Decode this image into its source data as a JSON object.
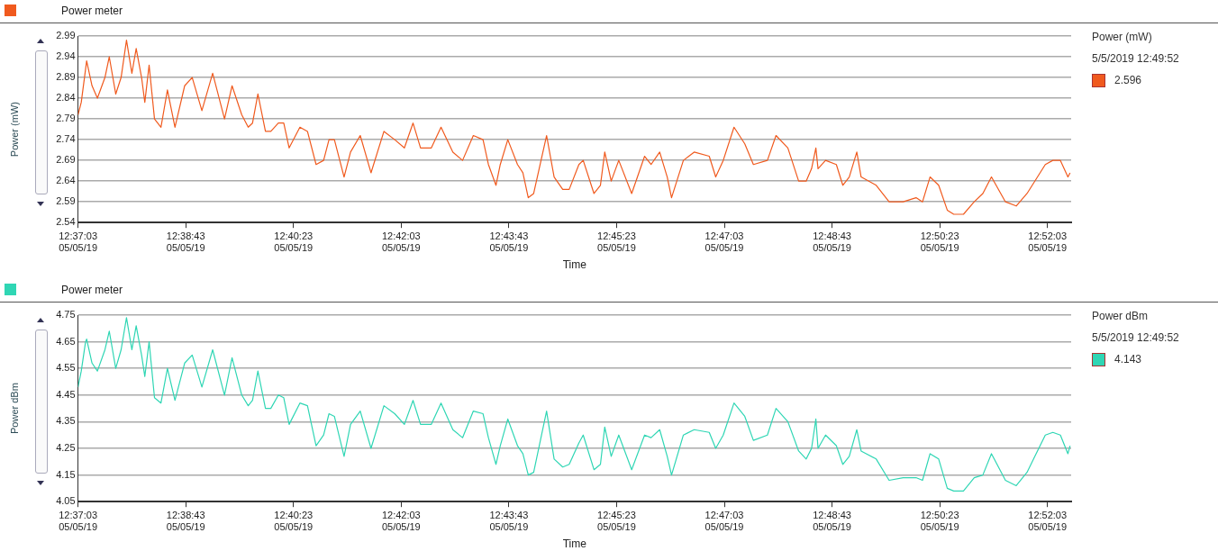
{
  "chart_data": [
    {
      "type": "line",
      "title": "Power meter",
      "xlabel": "Time",
      "ylabel": "Power (mW)",
      "legend_title": "Power (mW)",
      "legend": "top right",
      "grid": "y",
      "marker": "none",
      "line_style": "solid",
      "annotations": [
        "5/5/2019 12:49:52"
      ],
      "x": [
        "2019-05-05T12:37:03",
        "2019-05-05T12:37:06",
        "2019-05-05T12:37:10",
        "2019-05-05T12:37:11",
        "2019-05-05T12:37:16",
        "2019-05-05T12:37:21",
        "2019-05-05T12:37:28",
        "2019-05-05T12:37:32",
        "2019-05-05T12:37:38",
        "2019-05-05T12:37:43",
        "2019-05-05T12:37:48",
        "2019-05-05T12:37:53",
        "2019-05-05T12:37:57",
        "2019-05-05T12:38:02",
        "2019-05-05T12:38:05",
        "2019-05-05T12:38:09",
        "2019-05-05T12:38:14",
        "2019-05-05T12:38:20",
        "2019-05-05T12:38:26",
        "2019-05-05T12:38:33",
        "2019-05-05T12:38:42",
        "2019-05-05T12:38:49",
        "2019-05-05T12:38:58",
        "2019-05-05T12:39:08",
        "2019-05-05T12:39:19",
        "2019-05-05T12:39:26",
        "2019-05-05T12:39:35",
        "2019-05-05T12:39:41",
        "2019-05-05T12:39:45",
        "2019-05-05T12:39:50",
        "2019-05-05T12:39:57",
        "2019-05-05T12:40:02",
        "2019-05-05T12:40:09",
        "2019-05-05T12:40:14",
        "2019-05-05T12:40:19",
        "2019-05-05T12:40:29",
        "2019-05-05T12:40:36",
        "2019-05-05T12:40:44",
        "2019-05-05T12:40:51",
        "2019-05-05T12:40:56",
        "2019-05-05T12:41:01",
        "2019-05-05T12:41:10",
        "2019-05-05T12:41:16",
        "2019-05-05T12:41:25",
        "2019-05-05T12:41:35",
        "2019-05-05T12:41:47",
        "2019-05-05T12:41:57",
        "2019-05-05T12:42:06",
        "2019-05-05T12:42:14",
        "2019-05-05T12:42:21",
        "2019-05-05T12:42:31",
        "2019-05-05T12:42:40",
        "2019-05-05T12:42:51",
        "2019-05-05T12:43:00",
        "2019-05-05T12:43:10",
        "2019-05-05T12:43:19",
        "2019-05-05T12:43:24",
        "2019-05-05T12:43:31",
        "2019-05-05T12:43:35",
        "2019-05-05T12:43:42",
        "2019-05-05T12:43:51",
        "2019-05-05T12:43:56",
        "2019-05-05T12:44:01",
        "2019-05-05T12:44:06",
        "2019-05-05T12:44:18",
        "2019-05-05T12:44:25",
        "2019-05-05T12:44:33",
        "2019-05-05T12:44:39",
        "2019-05-05T12:44:48",
        "2019-05-05T12:44:52",
        "2019-05-05T12:45:02",
        "2019-05-05T12:45:08",
        "2019-05-05T12:45:12",
        "2019-05-05T12:45:18",
        "2019-05-05T12:45:25",
        "2019-05-05T12:45:37",
        "2019-05-05T12:45:49",
        "2019-05-05T12:45:55",
        "2019-05-05T12:46:03",
        "2019-05-05T12:46:10",
        "2019-05-05T12:46:14",
        "2019-05-05T12:46:25",
        "2019-05-05T12:46:35",
        "2019-05-05T12:46:49",
        "2019-05-05T12:46:55",
        "2019-05-05T12:47:02",
        "2019-05-05T12:47:12",
        "2019-05-05T12:47:22",
        "2019-05-05T12:47:30",
        "2019-05-05T12:47:43",
        "2019-05-05T12:47:51",
        "2019-05-05T12:48:02",
        "2019-05-05T12:48:12",
        "2019-05-05T12:48:19",
        "2019-05-05T12:48:24",
        "2019-05-05T12:48:28",
        "2019-05-05T12:48:30",
        "2019-05-05T12:48:37",
        "2019-05-05T12:48:47",
        "2019-05-05T12:48:53",
        "2019-05-05T12:48:59",
        "2019-05-05T12:49:06",
        "2019-05-05T12:49:10",
        "2019-05-05T12:49:24",
        "2019-05-05T12:49:36",
        "2019-05-05T12:49:49",
        "2019-05-05T12:50:01",
        "2019-05-05T12:50:07",
        "2019-05-05T12:50:14",
        "2019-05-05T12:50:22",
        "2019-05-05T12:50:30",
        "2019-05-05T12:50:36",
        "2019-05-05T12:50:45",
        "2019-05-05T12:50:55",
        "2019-05-05T12:51:03",
        "2019-05-05T12:51:11",
        "2019-05-05T12:51:24",
        "2019-05-05T12:51:34",
        "2019-05-05T12:51:44",
        "2019-05-05T12:52:01",
        "2019-05-05T12:52:08",
        "2019-05-05T12:52:15",
        "2019-05-05T12:52:22",
        "2019-05-05T12:52:24"
      ],
      "xlim": [
        "2019-05-05T12:37:03",
        "2019-05-05T12:52:25"
      ],
      "xticks": [
        {
          "value": "2019-05-05T12:37:03",
          "label": "12:37:03 05/05/19"
        },
        {
          "value": "2019-05-05T12:38:43",
          "label": "12:38:43 05/05/19"
        },
        {
          "value": "2019-05-05T12:40:23",
          "label": "12:40:23 05/05/19"
        },
        {
          "value": "2019-05-05T12:42:03",
          "label": "12:42:03 05/05/19"
        },
        {
          "value": "2019-05-05T12:43:43",
          "label": "12:43:43 05/05/19"
        },
        {
          "value": "2019-05-05T12:45:23",
          "label": "12:45:23 05/05/19"
        },
        {
          "value": "2019-05-05T12:47:03",
          "label": "12:47:03 05/05/19"
        },
        {
          "value": "2019-05-05T12:48:43",
          "label": "12:48:43 05/05/19"
        },
        {
          "value": "2019-05-05T12:50:23",
          "label": "12:50:23 05/05/19"
        },
        {
          "value": "2019-05-05T12:52:03",
          "label": "12:52:03 05/05/19"
        }
      ],
      "ylim": [
        2.54,
        2.99
      ],
      "yticks": [
        2.54,
        2.59,
        2.64,
        2.69,
        2.74,
        2.79,
        2.84,
        2.89,
        2.94,
        2.99
      ],
      "series": [
        {
          "name": "2.596",
          "color": "#f05a1e",
          "values": [
            2.8,
            2.83,
            2.91,
            2.93,
            2.87,
            2.84,
            2.89,
            2.94,
            2.85,
            2.89,
            2.98,
            2.9,
            2.96,
            2.89,
            2.83,
            2.92,
            2.79,
            2.77,
            2.86,
            2.77,
            2.87,
            2.89,
            2.81,
            2.9,
            2.79,
            2.87,
            2.8,
            2.77,
            2.78,
            2.85,
            2.76,
            2.76,
            2.78,
            2.78,
            2.72,
            2.77,
            2.76,
            2.68,
            2.69,
            2.74,
            2.74,
            2.65,
            2.71,
            2.75,
            2.66,
            2.76,
            2.74,
            2.72,
            2.78,
            2.72,
            2.72,
            2.77,
            2.71,
            2.69,
            2.75,
            2.74,
            2.68,
            2.63,
            2.68,
            2.74,
            2.68,
            2.66,
            2.6,
            2.61,
            2.75,
            2.65,
            2.62,
            2.62,
            2.68,
            2.69,
            2.61,
            2.63,
            2.71,
            2.64,
            2.69,
            2.61,
            2.7,
            2.68,
            2.71,
            2.65,
            2.6,
            2.69,
            2.71,
            2.7,
            2.65,
            2.69,
            2.77,
            2.73,
            2.68,
            2.69,
            2.75,
            2.72,
            2.64,
            2.64,
            2.67,
            2.72,
            2.67,
            2.69,
            2.68,
            2.63,
            2.65,
            2.71,
            2.65,
            2.63,
            2.59,
            2.59,
            2.6,
            2.59,
            2.65,
            2.63,
            2.57,
            2.56,
            2.56,
            2.59,
            2.61,
            2.65,
            2.59,
            2.58,
            2.61,
            2.68,
            2.69,
            2.69,
            2.65,
            2.66
          ]
        }
      ]
    },
    {
      "type": "line",
      "title": "Power meter",
      "xlabel": "Time",
      "ylabel": "Power dBm",
      "legend_title": "Power dBm",
      "legend": "top right",
      "grid": "y",
      "marker": "none",
      "line_style": "solid",
      "annotations": [
        "5/5/2019 12:49:52"
      ],
      "x": [
        "2019-05-05T12:37:03",
        "2019-05-05T12:37:06",
        "2019-05-05T12:37:10",
        "2019-05-05T12:37:11",
        "2019-05-05T12:37:16",
        "2019-05-05T12:37:21",
        "2019-05-05T12:37:28",
        "2019-05-05T12:37:32",
        "2019-05-05T12:37:38",
        "2019-05-05T12:37:43",
        "2019-05-05T12:37:48",
        "2019-05-05T12:37:53",
        "2019-05-05T12:37:57",
        "2019-05-05T12:38:02",
        "2019-05-05T12:38:05",
        "2019-05-05T12:38:09",
        "2019-05-05T12:38:14",
        "2019-05-05T12:38:20",
        "2019-05-05T12:38:26",
        "2019-05-05T12:38:33",
        "2019-05-05T12:38:42",
        "2019-05-05T12:38:49",
        "2019-05-05T12:38:58",
        "2019-05-05T12:39:08",
        "2019-05-05T12:39:19",
        "2019-05-05T12:39:26",
        "2019-05-05T12:39:35",
        "2019-05-05T12:39:41",
        "2019-05-05T12:39:45",
        "2019-05-05T12:39:50",
        "2019-05-05T12:39:57",
        "2019-05-05T12:40:02",
        "2019-05-05T12:40:09",
        "2019-05-05T12:40:14",
        "2019-05-05T12:40:19",
        "2019-05-05T12:40:29",
        "2019-05-05T12:40:36",
        "2019-05-05T12:40:44",
        "2019-05-05T12:40:51",
        "2019-05-05T12:40:56",
        "2019-05-05T12:41:01",
        "2019-05-05T12:41:10",
        "2019-05-05T12:41:16",
        "2019-05-05T12:41:25",
        "2019-05-05T12:41:35",
        "2019-05-05T12:41:47",
        "2019-05-05T12:41:57",
        "2019-05-05T12:42:06",
        "2019-05-05T12:42:14",
        "2019-05-05T12:42:21",
        "2019-05-05T12:42:31",
        "2019-05-05T12:42:40",
        "2019-05-05T12:42:51",
        "2019-05-05T12:43:00",
        "2019-05-05T12:43:10",
        "2019-05-05T12:43:19",
        "2019-05-05T12:43:24",
        "2019-05-05T12:43:31",
        "2019-05-05T12:43:35",
        "2019-05-05T12:43:42",
        "2019-05-05T12:43:51",
        "2019-05-05T12:43:56",
        "2019-05-05T12:44:01",
        "2019-05-05T12:44:06",
        "2019-05-05T12:44:18",
        "2019-05-05T12:44:25",
        "2019-05-05T12:44:33",
        "2019-05-05T12:44:39",
        "2019-05-05T12:44:48",
        "2019-05-05T12:44:52",
        "2019-05-05T12:45:02",
        "2019-05-05T12:45:08",
        "2019-05-05T12:45:12",
        "2019-05-05T12:45:18",
        "2019-05-05T12:45:25",
        "2019-05-05T12:45:37",
        "2019-05-05T12:45:49",
        "2019-05-05T12:45:55",
        "2019-05-05T12:46:03",
        "2019-05-05T12:46:10",
        "2019-05-05T12:46:14",
        "2019-05-05T12:46:25",
        "2019-05-05T12:46:35",
        "2019-05-05T12:46:49",
        "2019-05-05T12:46:55",
        "2019-05-05T12:47:02",
        "2019-05-05T12:47:12",
        "2019-05-05T12:47:22",
        "2019-05-05T12:47:30",
        "2019-05-05T12:47:43",
        "2019-05-05T12:47:51",
        "2019-05-05T12:48:02",
        "2019-05-05T12:48:12",
        "2019-05-05T12:48:19",
        "2019-05-05T12:48:24",
        "2019-05-05T12:48:28",
        "2019-05-05T12:48:30",
        "2019-05-05T12:48:37",
        "2019-05-05T12:48:47",
        "2019-05-05T12:48:53",
        "2019-05-05T12:48:59",
        "2019-05-05T12:49:06",
        "2019-05-05T12:49:10",
        "2019-05-05T12:49:24",
        "2019-05-05T12:49:36",
        "2019-05-05T12:49:49",
        "2019-05-05T12:50:01",
        "2019-05-05T12:50:07",
        "2019-05-05T12:50:14",
        "2019-05-05T12:50:22",
        "2019-05-05T12:50:30",
        "2019-05-05T12:50:36",
        "2019-05-05T12:50:45",
        "2019-05-05T12:50:55",
        "2019-05-05T12:51:03",
        "2019-05-05T12:51:11",
        "2019-05-05T12:51:24",
        "2019-05-05T12:51:34",
        "2019-05-05T12:51:44",
        "2019-05-05T12:52:01",
        "2019-05-05T12:52:08",
        "2019-05-05T12:52:15",
        "2019-05-05T12:52:22",
        "2019-05-05T12:52:24"
      ],
      "xlim": [
        "2019-05-05T12:37:03",
        "2019-05-05T12:52:25"
      ],
      "xticks": [
        {
          "value": "2019-05-05T12:37:03",
          "label": "12:37:03 05/05/19"
        },
        {
          "value": "2019-05-05T12:38:43",
          "label": "12:38:43 05/05/19"
        },
        {
          "value": "2019-05-05T12:40:23",
          "label": "12:40:23 05/05/19"
        },
        {
          "value": "2019-05-05T12:42:03",
          "label": "12:42:03 05/05/19"
        },
        {
          "value": "2019-05-05T12:43:43",
          "label": "12:43:43 05/05/19"
        },
        {
          "value": "2019-05-05T12:45:23",
          "label": "12:45:23 05/05/19"
        },
        {
          "value": "2019-05-05T12:47:03",
          "label": "12:47:03 05/05/19"
        },
        {
          "value": "2019-05-05T12:48:43",
          "label": "12:48:43 05/05/19"
        },
        {
          "value": "2019-05-05T12:50:23",
          "label": "12:50:23 05/05/19"
        },
        {
          "value": "2019-05-05T12:52:03",
          "label": "12:52:03 05/05/19"
        }
      ],
      "ylim": [
        4.05,
        4.75
      ],
      "yticks": [
        4.05,
        4.15,
        4.25,
        4.35,
        4.45,
        4.55,
        4.65,
        4.75
      ],
      "series": [
        {
          "name": "4.143",
          "color": "#2fd6b4",
          "values": [
            4.48,
            4.54,
            4.65,
            4.66,
            4.57,
            4.54,
            4.62,
            4.69,
            4.55,
            4.62,
            4.74,
            4.62,
            4.71,
            4.6,
            4.52,
            4.65,
            4.44,
            4.42,
            4.55,
            4.43,
            4.57,
            4.6,
            4.48,
            4.62,
            4.45,
            4.59,
            4.45,
            4.41,
            4.43,
            4.54,
            4.4,
            4.4,
            4.45,
            4.44,
            4.34,
            4.42,
            4.41,
            4.26,
            4.3,
            4.38,
            4.37,
            4.22,
            4.34,
            4.39,
            4.25,
            4.41,
            4.38,
            4.34,
            4.43,
            4.34,
            4.34,
            4.42,
            4.32,
            4.29,
            4.39,
            4.38,
            4.29,
            4.19,
            4.26,
            4.36,
            4.26,
            4.23,
            4.15,
            4.16,
            4.39,
            4.21,
            4.18,
            4.19,
            4.27,
            4.3,
            4.17,
            4.19,
            4.33,
            4.22,
            4.3,
            4.17,
            4.3,
            4.29,
            4.32,
            4.22,
            4.15,
            4.3,
            4.32,
            4.31,
            4.25,
            4.3,
            4.42,
            4.37,
            4.28,
            4.3,
            4.4,
            4.35,
            4.24,
            4.21,
            4.25,
            4.36,
            4.25,
            4.3,
            4.26,
            4.19,
            4.22,
            4.32,
            4.24,
            4.21,
            4.13,
            4.14,
            4.14,
            4.13,
            4.23,
            4.21,
            4.1,
            4.09,
            4.09,
            4.14,
            4.15,
            4.23,
            4.13,
            4.11,
            4.16,
            4.3,
            4.31,
            4.3,
            4.23,
            4.26
          ]
        }
      ]
    }
  ]
}
